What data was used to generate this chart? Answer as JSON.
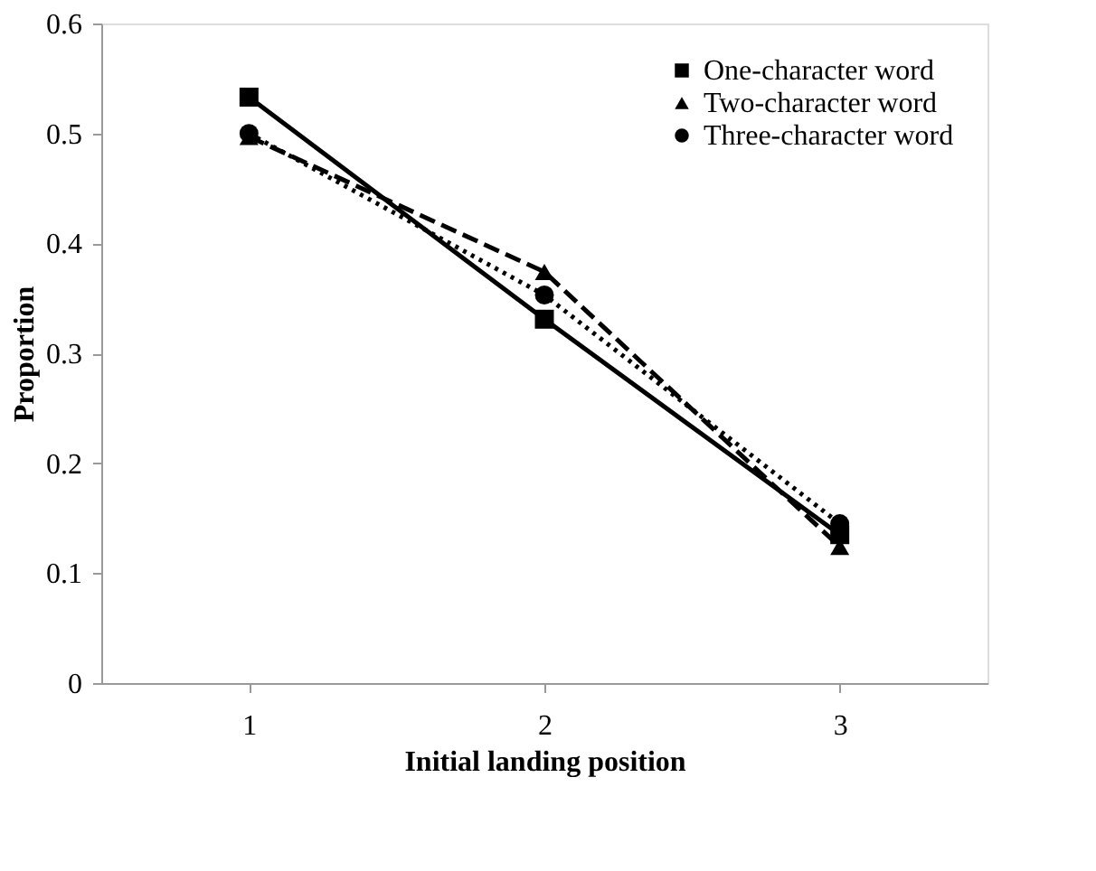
{
  "chart_data": {
    "type": "line",
    "xlabel": "Initial landing position",
    "ylabel": "Proportion",
    "categories": [
      "1",
      "2",
      "3"
    ],
    "series": [
      {
        "name": "One-character word",
        "color": "#000000",
        "marker": "square",
        "line_style": "solid",
        "values": [
          0.533,
          0.331,
          0.135
        ]
      },
      {
        "name": "Two-character word",
        "color": "#000000",
        "marker": "triangle",
        "line_style": "dashed",
        "values": [
          0.497,
          0.374,
          0.124
        ]
      },
      {
        "name": "Three-character word",
        "color": "#000000",
        "marker": "circle",
        "line_style": "dotted",
        "values": [
          0.5,
          0.353,
          0.145
        ]
      }
    ],
    "ylim": [
      0,
      0.6
    ],
    "yticks": [
      0,
      0.1,
      0.2,
      0.3,
      0.4,
      0.5,
      0.6
    ],
    "grid": false,
    "legend": "top right"
  }
}
